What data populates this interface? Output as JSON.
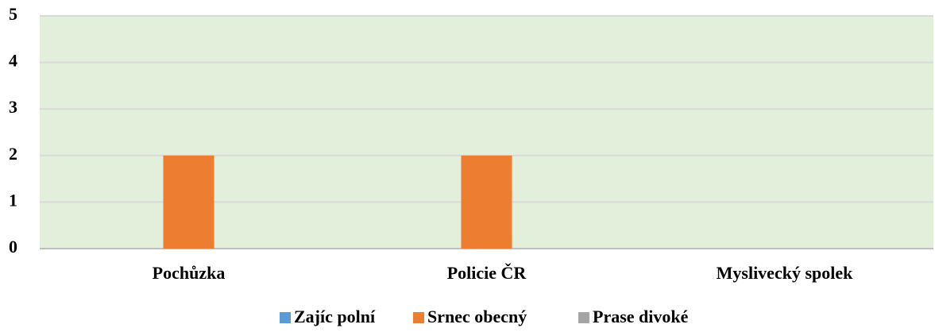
{
  "chart_data": {
    "type": "bar",
    "categories": [
      "Pochůzka",
      "Policie ČR",
      "Myslivecký spolek"
    ],
    "series": [
      {
        "name": "Zajíc polní",
        "color": "#5b9bd5",
        "values": [
          0,
          0,
          0
        ]
      },
      {
        "name": "Srnec obecný",
        "color": "#ed7d31",
        "values": [
          2,
          2,
          0
        ]
      },
      {
        "name": "Prase divoké",
        "color": "#a5a5a5",
        "values": [
          0,
          0,
          0
        ]
      }
    ],
    "ylim": [
      0,
      5
    ],
    "yticks": [
      0,
      1,
      2,
      3,
      4,
      5
    ],
    "grid": true,
    "legend": "bottom"
  }
}
